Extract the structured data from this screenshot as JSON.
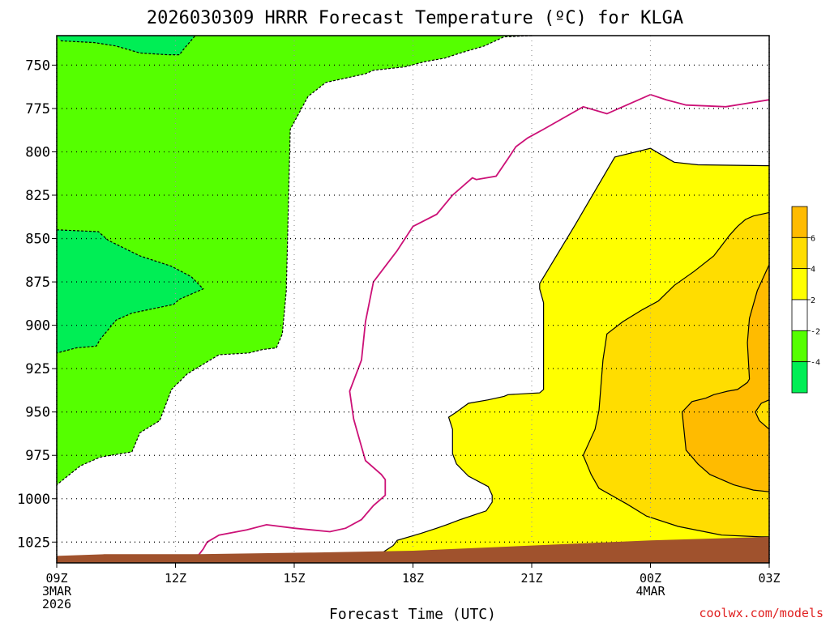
{
  "chart_data": {
    "type": "contour",
    "title": "2026030309 HRRR Forecast Temperature (ºC) for KLGA",
    "xlabel": "Forecast Time (UTC)",
    "ylabel": "",
    "x_ticks": [
      "09Z",
      "12Z",
      "15Z",
      "18Z",
      "21Z",
      "00Z",
      "03Z"
    ],
    "x_tick_hours": [
      0,
      3,
      6,
      9,
      12,
      15,
      18
    ],
    "x_date_labels": [
      {
        "hour": 0,
        "lines": [
          "3MAR",
          "2026"
        ]
      },
      {
        "hour": 15,
        "lines": [
          "4MAR"
        ]
      }
    ],
    "y_ticks": [
      750,
      775,
      800,
      825,
      850,
      875,
      900,
      925,
      950,
      975,
      1000,
      1025
    ],
    "xlim": [
      0,
      18
    ],
    "ylim": [
      1037,
      733
    ],
    "grid": true,
    "colorbar": {
      "ticks": [
        "-4",
        "-2",
        "2",
        "4",
        "6"
      ],
      "levels": [
        {
          "range": "<-4",
          "color": "#00ee55"
        },
        {
          "range": "-4 to -2",
          "color": "#55ff00"
        },
        {
          "range": "-2 to 2",
          "color": "#ffffff"
        },
        {
          "range": "2 to 4",
          "color": "#ffff00"
        },
        {
          "range": "4 to 6",
          "color": "#ffdd00"
        },
        {
          "range": ">6",
          "color": "#ffbb00"
        }
      ]
    },
    "zero_line_color": "#cc1177",
    "terrain_color": "#a0522d",
    "regions": [
      {
        "name": "cold -4 to -2",
        "fill": "#55ff00",
        "points": [
          [
            0,
            733
          ],
          [
            12,
            733
          ],
          [
            11.3,
            733.7
          ],
          [
            10.8,
            739
          ],
          [
            10.2,
            743
          ],
          [
            9.8,
            746
          ],
          [
            9.3,
            748
          ],
          [
            8.8,
            751
          ],
          [
            8,
            753
          ],
          [
            7.8,
            755
          ],
          [
            6.8,
            760
          ],
          [
            6.35,
            768
          ],
          [
            5.9,
            787
          ],
          [
            5.8,
            880
          ],
          [
            5.7,
            905
          ],
          [
            5.55,
            913
          ],
          [
            5.2,
            914
          ],
          [
            4.85,
            916
          ],
          [
            4.1,
            917
          ],
          [
            3.3,
            928
          ],
          [
            2.9,
            937
          ],
          [
            2.6,
            955
          ],
          [
            2.1,
            962
          ],
          [
            1.9,
            973
          ],
          [
            1.1,
            976
          ],
          [
            0.6,
            981
          ],
          [
            0,
            992
          ]
        ]
      },
      {
        "name": "cold < -4 upper",
        "fill": "#00ee55",
        "points": [
          [
            0,
            733
          ],
          [
            12,
            733
          ],
          [
            0,
            733
          ]
        ]
      },
      {
        "name": "cold < -4 left",
        "fill": "#00ee55",
        "points": [
          [
            0,
            845
          ],
          [
            1.05,
            846
          ],
          [
            1.3,
            851
          ],
          [
            2.1,
            860
          ],
          [
            2.9,
            866
          ],
          [
            3.4,
            872
          ],
          [
            3.7,
            879
          ],
          [
            3.1,
            885
          ],
          [
            2.95,
            888
          ],
          [
            2.1,
            892
          ],
          [
            1.9,
            893
          ],
          [
            1.5,
            897
          ],
          [
            1.1,
            908
          ],
          [
            1.0,
            912
          ],
          [
            0.5,
            913
          ],
          [
            0,
            916
          ]
        ]
      },
      {
        "name": "cold < -4 top-left",
        "fill": "#00ee55",
        "points": [
          [
            0,
            733
          ],
          [
            0.1,
            736
          ],
          [
            0.95,
            737
          ],
          [
            1.5,
            739
          ],
          [
            2.1,
            743
          ],
          [
            2.8,
            744
          ],
          [
            3.1,
            744
          ],
          [
            3.2,
            741
          ],
          [
            3.5,
            733
          ]
        ]
      },
      {
        "name": "warm 2 to 4",
        "fill": "#ffff00",
        "points": [
          [
            18,
            808
          ],
          [
            16.2,
            807.5
          ],
          [
            15.6,
            806
          ],
          [
            15.0,
            798
          ],
          [
            14.1,
            803
          ],
          [
            13.1,
            842
          ],
          [
            12.2,
            876
          ],
          [
            12.2,
            879
          ],
          [
            12.3,
            887
          ],
          [
            12.3,
            937
          ],
          [
            12.2,
            939
          ],
          [
            11.4,
            940
          ],
          [
            11.3,
            941
          ],
          [
            11.1,
            942
          ],
          [
            10.9,
            943
          ],
          [
            10.4,
            945
          ],
          [
            10.1,
            950
          ],
          [
            9.9,
            953
          ],
          [
            10.0,
            960
          ],
          [
            10.0,
            974
          ],
          [
            10.1,
            980
          ],
          [
            10.4,
            987
          ],
          [
            10.9,
            993
          ],
          [
            11.0,
            998
          ],
          [
            11.0,
            1002
          ],
          [
            10.85,
            1007
          ],
          [
            10.2,
            1012
          ],
          [
            9.85,
            1015
          ],
          [
            9.6,
            1017
          ],
          [
            9.2,
            1020
          ],
          [
            8.6,
            1024
          ],
          [
            8.5,
            1027
          ],
          [
            8.2,
            1031.5
          ],
          [
            8.2,
            1035
          ],
          [
            18,
            1035
          ]
        ]
      },
      {
        "name": "warm 4 to 6",
        "fill": "#ffdd00",
        "points": [
          [
            18,
            835
          ],
          [
            17.6,
            837
          ],
          [
            17.4,
            839
          ],
          [
            17.2,
            843
          ],
          [
            17.0,
            848
          ],
          [
            16.6,
            860
          ],
          [
            16.1,
            869
          ],
          [
            15.6,
            877
          ],
          [
            15.2,
            886
          ],
          [
            14.8,
            891
          ],
          [
            14.3,
            898
          ],
          [
            13.9,
            905
          ],
          [
            13.8,
            920
          ],
          [
            13.7,
            949
          ],
          [
            13.6,
            960
          ],
          [
            13.3,
            975
          ],
          [
            13.5,
            986
          ],
          [
            13.7,
            994
          ],
          [
            14.4,
            1003
          ],
          [
            14.9,
            1010
          ],
          [
            15.7,
            1016
          ],
          [
            16.8,
            1021
          ],
          [
            17.8,
            1022
          ],
          [
            18,
            1022
          ]
        ]
      },
      {
        "name": "warm > 6",
        "fill": "#ffbb00",
        "points": [
          [
            18,
            865
          ],
          [
            17.7,
            880
          ],
          [
            17.5,
            896
          ],
          [
            17.45,
            910
          ],
          [
            17.5,
            931
          ],
          [
            17.45,
            933
          ],
          [
            17.2,
            937
          ],
          [
            16.95,
            938
          ],
          [
            16.6,
            940
          ],
          [
            16.4,
            942
          ],
          [
            16.05,
            944
          ],
          [
            15.8,
            950
          ],
          [
            15.9,
            972
          ],
          [
            16.2,
            980
          ],
          [
            16.5,
            986
          ],
          [
            17.1,
            992
          ],
          [
            17.6,
            995
          ],
          [
            18,
            996
          ]
        ]
      },
      {
        "name": "warm > 6 right notch",
        "fill": "#ffdd00",
        "points": [
          [
            18,
            943
          ],
          [
            17.8,
            945
          ],
          [
            17.65,
            950
          ],
          [
            17.75,
            955
          ],
          [
            18,
            960
          ]
        ]
      }
    ],
    "zero_isotherm": [
      [
        18,
        770
      ],
      [
        16.9,
        774
      ],
      [
        15.9,
        773
      ],
      [
        15.4,
        770
      ],
      [
        15.0,
        767
      ],
      [
        14.4,
        773
      ],
      [
        13.9,
        778
      ],
      [
        13.3,
        774
      ],
      [
        12.3,
        787
      ],
      [
        11.9,
        792
      ],
      [
        11.6,
        797
      ],
      [
        11.4,
        804
      ],
      [
        11.1,
        814
      ],
      [
        10.6,
        816
      ],
      [
        10.5,
        815
      ],
      [
        10.0,
        825
      ],
      [
        9.6,
        836
      ],
      [
        9.0,
        843
      ],
      [
        8.6,
        857
      ],
      [
        8.3,
        866
      ],
      [
        8.0,
        875
      ],
      [
        7.8,
        898
      ],
      [
        7.7,
        920
      ],
      [
        7.4,
        938
      ],
      [
        7.5,
        954
      ],
      [
        7.6,
        962
      ],
      [
        7.8,
        978
      ],
      [
        8.2,
        986
      ],
      [
        8.3,
        989
      ],
      [
        8.3,
        998
      ],
      [
        8.2,
        1000
      ],
      [
        8.0,
        1004
      ],
      [
        7.7,
        1012
      ],
      [
        7.3,
        1017
      ],
      [
        6.9,
        1019
      ],
      [
        6.0,
        1017
      ],
      [
        5.3,
        1015
      ],
      [
        4.8,
        1018
      ],
      [
        4.1,
        1021
      ],
      [
        3.8,
        1025
      ],
      [
        3.7,
        1029
      ],
      [
        3.6,
        1032
      ],
      [
        3.5,
        1035
      ]
    ],
    "terrain": [
      [
        0,
        1033
      ],
      [
        1.2,
        1032
      ],
      [
        3.5,
        1032
      ],
      [
        6.5,
        1031
      ],
      [
        9.0,
        1030
      ],
      [
        12.0,
        1027
      ],
      [
        15.0,
        1024
      ],
      [
        18,
        1022
      ],
      [
        18,
        1037
      ],
      [
        0,
        1037
      ]
    ]
  },
  "watermark": "coolwx.com/models"
}
